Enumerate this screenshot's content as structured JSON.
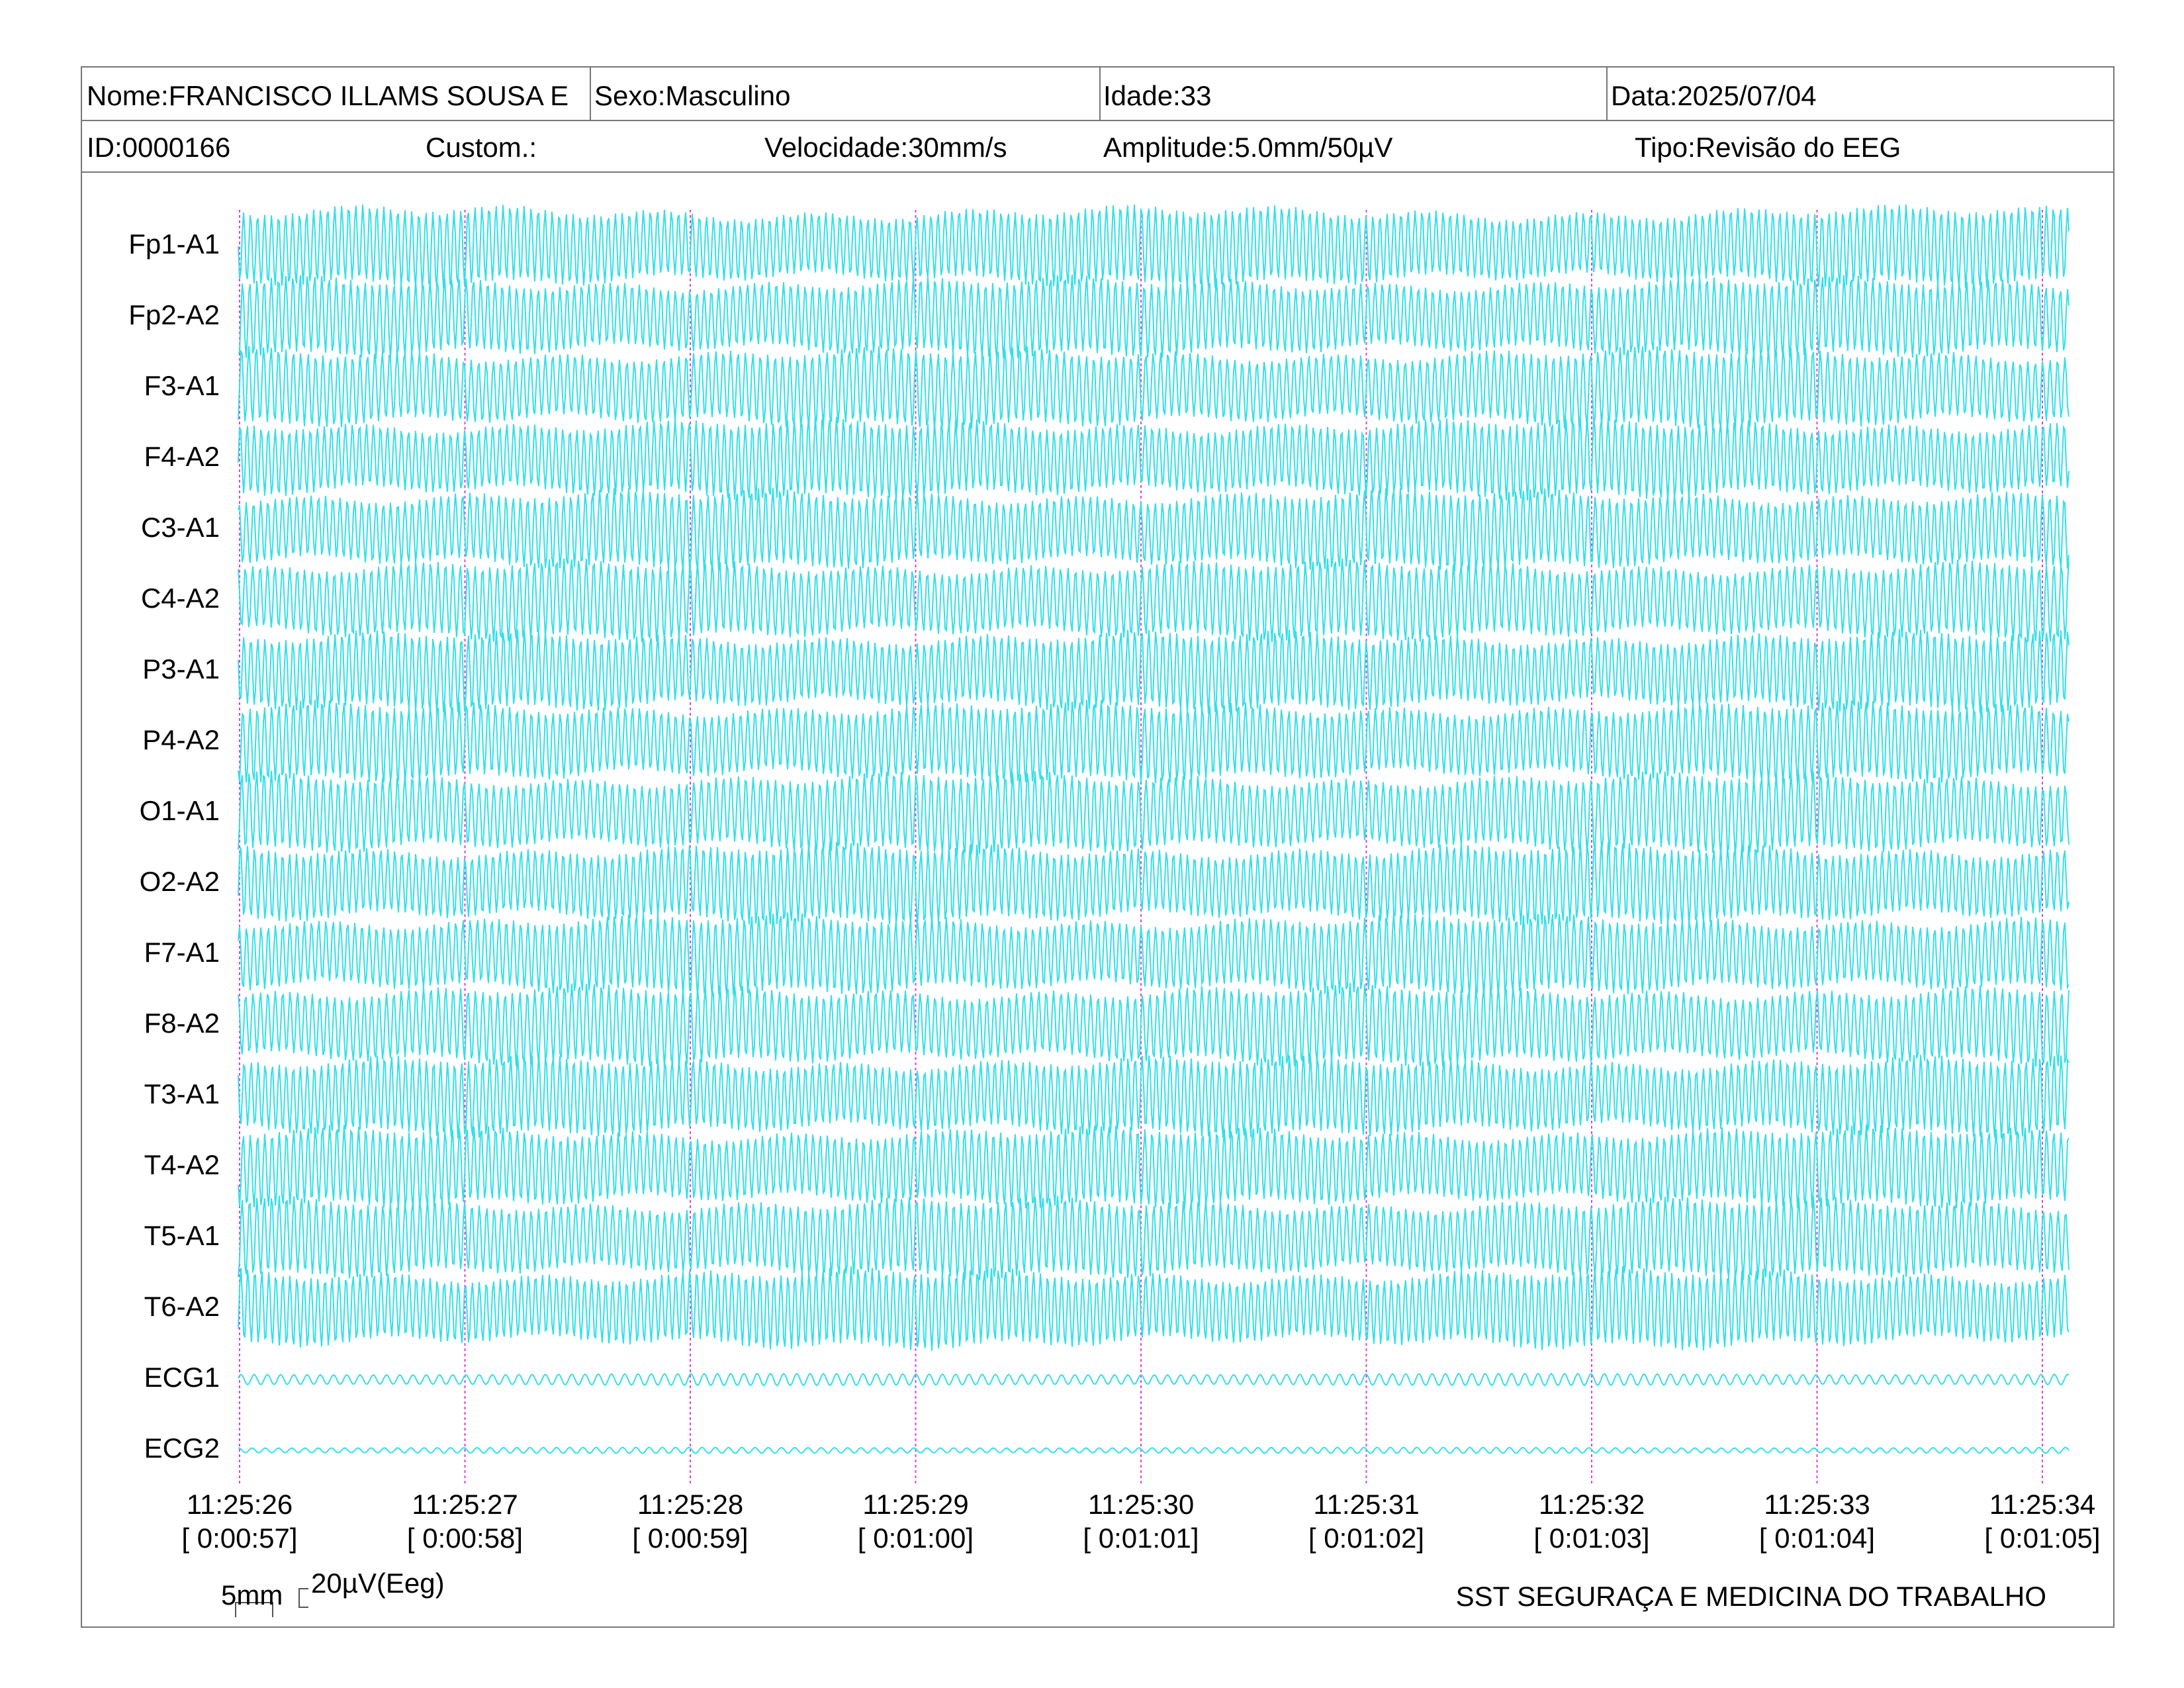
{
  "header": {
    "name": "Nome:FRANCISCO ILLAMS SOUSA E",
    "sex": "Sexo:Masculino",
    "age": "Idade:33",
    "date": "Data:2025/07/04",
    "id": "ID:0000166",
    "custom": "Custom.:",
    "speed": "Velocidade:30mm/s",
    "amplitude": "Amplitude:5.0mm/50µV",
    "type": "Tipo:Revisão do EEG"
  },
  "channels": [
    "Fp1-A1",
    "Fp2-A2",
    "F3-A1",
    "F4-A2",
    "C3-A1",
    "C4-A2",
    "P3-A1",
    "P4-A2",
    "O1-A1",
    "O2-A2",
    "F7-A1",
    "F8-A2",
    "T3-A1",
    "T4-A2",
    "T5-A1",
    "T6-A2",
    "ECG1",
    "ECG2"
  ],
  "time_marks": [
    {
      "time": "11:25:26",
      "elapsed": "[ 0:00:57]"
    },
    {
      "time": "11:25:27",
      "elapsed": "[ 0:00:58]"
    },
    {
      "time": "11:25:28",
      "elapsed": "[ 0:00:59]"
    },
    {
      "time": "11:25:29",
      "elapsed": "[ 0:01:00]"
    },
    {
      "time": "11:25:30",
      "elapsed": "[ 0:01:01]"
    },
    {
      "time": "11:25:31",
      "elapsed": "[ 0:01:02]"
    },
    {
      "time": "11:25:32",
      "elapsed": "[ 0:01:03]"
    },
    {
      "time": "11:25:33",
      "elapsed": "[ 0:01:04]"
    },
    {
      "time": "11:25:34",
      "elapsed": "[ 0:01:05]"
    }
  ],
  "footer": {
    "scale_time": "5mm",
    "scale_amp": "20µV(Eeg)",
    "company": "SST SEGURAÇA E MEDICINA DO TRABALHO"
  }
}
